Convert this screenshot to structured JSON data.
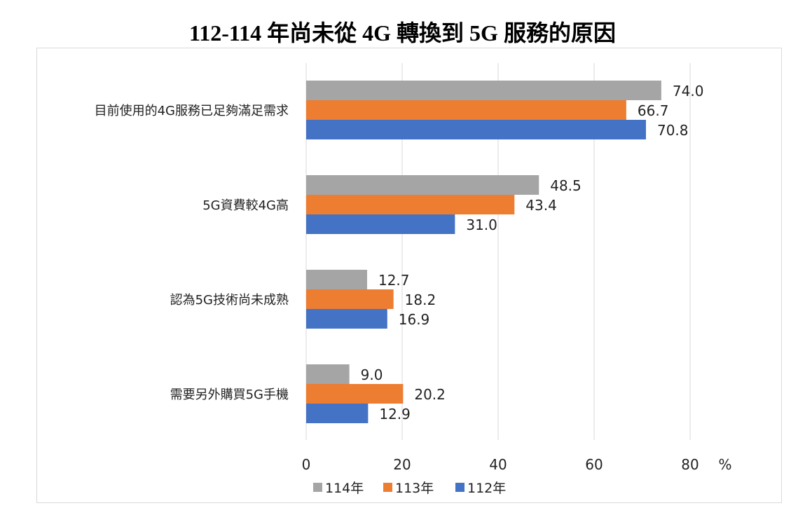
{
  "chart_data": {
    "type": "bar",
    "orientation": "horizontal",
    "title": "112-114 年尚未從 4G 轉換到 5G 服務的原因",
    "categories": [
      "目前使用的4G服務已足夠滿足需求",
      "5G資費較4G高",
      "認為5G技術尚未成熟",
      "需要另外購買5G手機"
    ],
    "series": [
      {
        "name": "114年",
        "color": "#A5A5A5",
        "values": [
          74.0,
          48.5,
          12.7,
          9.0
        ]
      },
      {
        "name": "113年",
        "color": "#ED7D31",
        "values": [
          66.7,
          43.4,
          18.2,
          20.2
        ]
      },
      {
        "name": "112年",
        "color": "#4472C4",
        "values": [
          70.8,
          31.0,
          16.9,
          12.9
        ]
      }
    ],
    "xlim": [
      0,
      80
    ],
    "xticks": [
      0,
      20,
      40,
      60,
      80
    ],
    "xunit": "%",
    "grid": true,
    "legend": "bottom"
  }
}
